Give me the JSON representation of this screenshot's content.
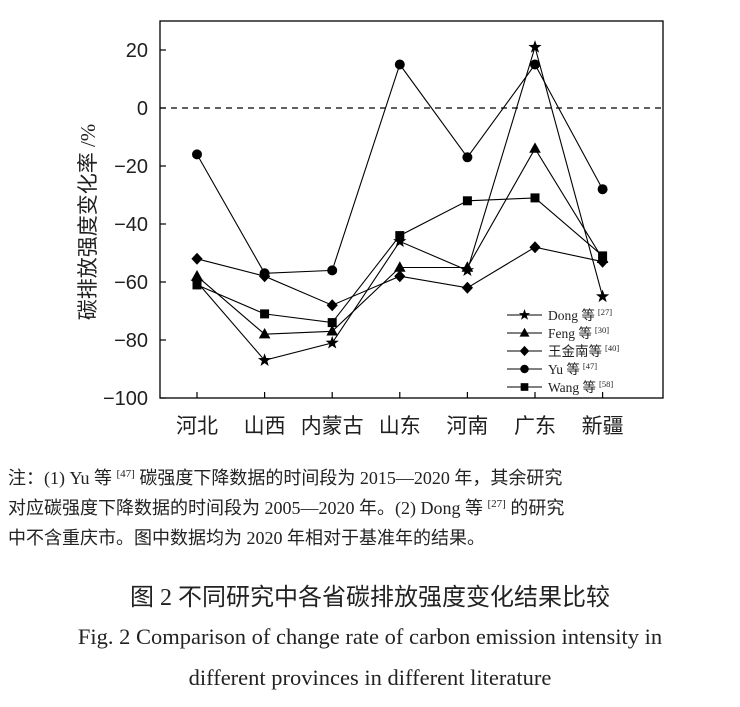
{
  "chart_data": {
    "type": "line",
    "categories": [
      "河北",
      "山西",
      "内蒙古",
      "山东",
      "河南",
      "广东",
      "新疆"
    ],
    "ylabel": "碳排放强度变化率 /%",
    "ylim": [
      -100,
      30
    ],
    "yticks": [
      20,
      0,
      -20,
      -40,
      -60,
      -80,
      -100
    ],
    "ytick_labels": [
      "20",
      "0",
      "−20",
      "−40",
      "−60",
      "−80",
      "−100"
    ],
    "reference_line": {
      "y": 0,
      "style": "dashed"
    },
    "grid": false,
    "legend_position": "bottom-right",
    "line_color": "#000000",
    "series": [
      {
        "name": "Dong 等",
        "ref": "[27]",
        "marker": "star",
        "values": [
          -60,
          -87,
          -81,
          -46,
          -56,
          21,
          -65
        ]
      },
      {
        "name": "Feng 等",
        "ref": "[30]",
        "marker": "triangle",
        "values": [
          -58,
          -78,
          -77,
          -55,
          -55,
          -14,
          -52
        ]
      },
      {
        "name": "王金南等",
        "ref": "[40]",
        "marker": "diamond",
        "values": [
          -52,
          -58,
          -68,
          -58,
          -62,
          -48,
          -53
        ]
      },
      {
        "name": "Yu 等",
        "ref": "[47]",
        "marker": "circle",
        "values": [
          -16,
          -57,
          -56,
          15,
          -17,
          15,
          -28
        ]
      },
      {
        "name": "Wang 等",
        "ref": "[58]",
        "marker": "square",
        "values": [
          -61,
          -71,
          -74,
          -44,
          -32,
          -31,
          -51
        ]
      }
    ]
  },
  "note": {
    "line1": {
      "before": "注：(1) Yu 等 ",
      "sup": "[47]",
      "after": " 碳强度下降数据的时间段为 2015—2020 年，其余研究"
    },
    "line2": {
      "before": "对应碳强度下降数据的时间段为 2005—2020 年。(2) Dong 等 ",
      "sup": "[27]",
      "after": " 的研究"
    },
    "line3": "中不含重庆市。图中数据均为 2020 年相对于基准年的结果。"
  },
  "caption": {
    "zh": "图 2 不同研究中各省碳排放强度变化结果比较",
    "en_line1": "Fig. 2 Comparison of change rate of carbon emission intensity in",
    "en_line2": "different provinces in different literature"
  }
}
